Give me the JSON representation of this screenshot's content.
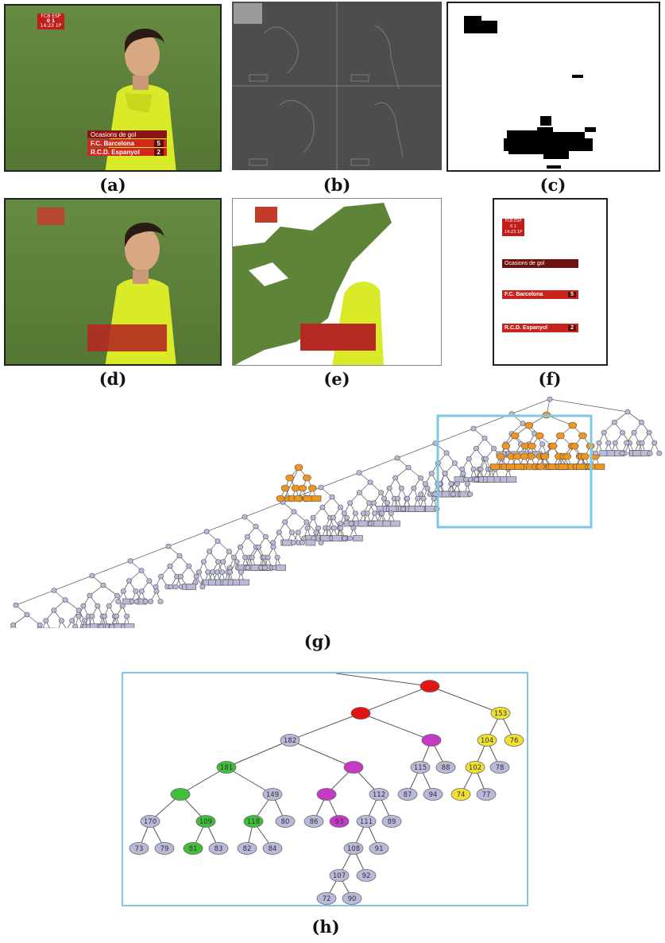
{
  "captions": {
    "a": "(a)",
    "b": "(b)",
    "c": "(c)",
    "d": "(d)",
    "e": "(e)",
    "f": "(f)",
    "g": "(g)",
    "h": "(h)"
  },
  "scorebug": {
    "teams": "FCB ESP",
    "score": "0  1",
    "time": "14:23 1P"
  },
  "banner": {
    "title": "Ocasions de gol",
    "row1_team": "F.C. Barcelona",
    "row1_value": "5",
    "row2_team": "R.C.D. Espanyol",
    "row2_value": "2"
  },
  "colors": {
    "tree_node": "#b9b9d9",
    "highlight_orange": "#f0961e",
    "zoom_box": "#7ec8e3",
    "red_node": "#e01515",
    "magenta_node": "#c43ac4",
    "green_node": "#3fbf3a",
    "yellow_node": "#f0e030"
  },
  "tree_h": {
    "nodes": [
      {
        "id": "n0",
        "label": "",
        "color": "red"
      },
      {
        "id": "n1",
        "label": "",
        "color": "red"
      },
      {
        "id": "n2",
        "label": "153",
        "color": "yellow"
      },
      {
        "id": "n3",
        "label": "182",
        "color": "lavender"
      },
      {
        "id": "n4",
        "label": "",
        "color": "magenta"
      },
      {
        "id": "n5",
        "label": "104",
        "color": "yellow"
      },
      {
        "id": "n6",
        "label": "76",
        "color": "yellow"
      },
      {
        "id": "n7",
        "label": "181",
        "color": "green"
      },
      {
        "id": "n8",
        "label": "",
        "color": "magenta"
      },
      {
        "id": "n9",
        "label": "115",
        "color": "lavender"
      },
      {
        "id": "n10",
        "label": "88",
        "color": "lavender"
      },
      {
        "id": "n11",
        "label": "102",
        "color": "yellow"
      },
      {
        "id": "n12",
        "label": "78",
        "color": "lavender"
      },
      {
        "id": "n13",
        "label": "",
        "color": "green"
      },
      {
        "id": "n14",
        "label": "149",
        "color": "lavender"
      },
      {
        "id": "n15",
        "label": "",
        "color": "magenta"
      },
      {
        "id": "n16",
        "label": "112",
        "color": "lavender"
      },
      {
        "id": "n17",
        "label": "87",
        "color": "lavender"
      },
      {
        "id": "n18",
        "label": "94",
        "color": "lavender"
      },
      {
        "id": "n19",
        "label": "74",
        "color": "yellow"
      },
      {
        "id": "n20",
        "label": "77",
        "color": "lavender"
      },
      {
        "id": "n21",
        "label": "170",
        "color": "lavender"
      },
      {
        "id": "n22",
        "label": "109",
        "color": "green"
      },
      {
        "id": "n23",
        "label": "118",
        "color": "green"
      },
      {
        "id": "n24",
        "label": "80",
        "color": "lavender"
      },
      {
        "id": "n25",
        "label": "86",
        "color": "lavender"
      },
      {
        "id": "n26",
        "label": "93",
        "color": "magenta"
      },
      {
        "id": "n27",
        "label": "111",
        "color": "lavender"
      },
      {
        "id": "n28",
        "label": "89",
        "color": "lavender"
      },
      {
        "id": "n29",
        "label": "73",
        "color": "lavender"
      },
      {
        "id": "n30",
        "label": "79",
        "color": "lavender"
      },
      {
        "id": "n31",
        "label": "81",
        "color": "green"
      },
      {
        "id": "n32",
        "label": "83",
        "color": "lavender"
      },
      {
        "id": "n33",
        "label": "82",
        "color": "lavender"
      },
      {
        "id": "n34",
        "label": "84",
        "color": "lavender"
      },
      {
        "id": "n35",
        "label": "108",
        "color": "lavender"
      },
      {
        "id": "n36",
        "label": "91",
        "color": "lavender"
      },
      {
        "id": "n37",
        "label": "107",
        "color": "lavender"
      },
      {
        "id": "n38",
        "label": "92",
        "color": "lavender"
      },
      {
        "id": "n39",
        "label": "72",
        "color": "lavender"
      },
      {
        "id": "n40",
        "label": "90",
        "color": "lavender"
      }
    ]
  }
}
